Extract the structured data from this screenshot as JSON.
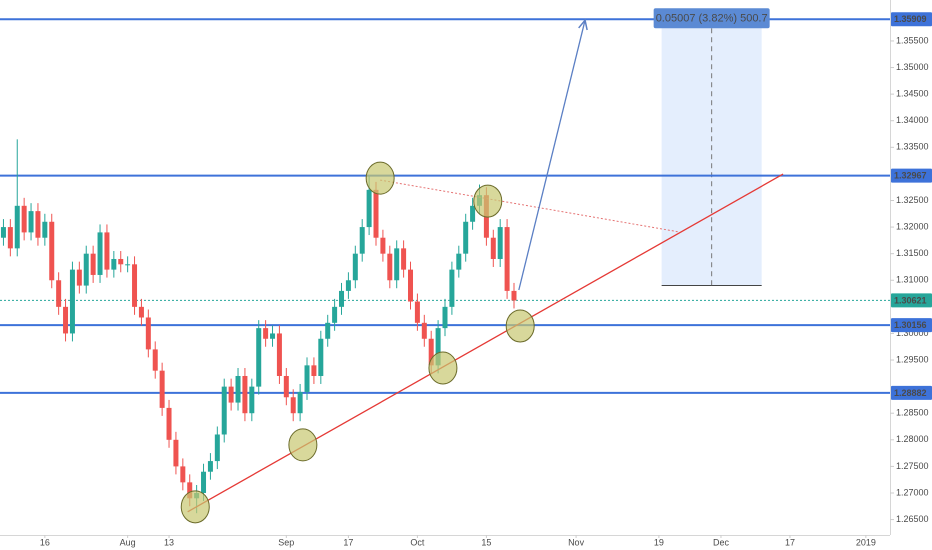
{
  "chart_data": {
    "type": "candlestick",
    "up_color": "#26a69a",
    "down_color": "#ef5350",
    "open": [
      1.318,
      1.32,
      1.316,
      1.324,
      1.319,
      1.323,
      1.318,
      1.321,
      1.31,
      1.305,
      1.3,
      1.312,
      1.309,
      1.315,
      1.311,
      1.319,
      1.312,
      1.314,
      1.313,
      1.313,
      1.305,
      1.303,
      1.297,
      1.293,
      1.286,
      1.28,
      1.275,
      1.272,
      1.269,
      1.27,
      1.274,
      1.276,
      1.281,
      1.29,
      1.287,
      1.292,
      1.285,
      1.29,
      1.301,
      1.299,
      1.3,
      1.292,
      1.288,
      1.285,
      1.289,
      1.294,
      1.292,
      1.299,
      1.302,
      1.305,
      1.308,
      1.31,
      1.315,
      1.32,
      1.327,
      1.318,
      1.315,
      1.31,
      1.316,
      1.312,
      1.306,
      1.302,
      1.299,
      1.294,
      1.301,
      1.305,
      1.312,
      1.315,
      1.321,
      1.324,
      1.326,
      1.318,
      1.314,
      1.32,
      1.308
    ],
    "high": [
      1.3215,
      1.3215,
      1.3365,
      1.3255,
      1.3245,
      1.3245,
      1.3225,
      1.3225,
      1.3115,
      1.3065,
      1.3135,
      1.3135,
      1.3165,
      1.3165,
      1.3205,
      1.3205,
      1.3155,
      1.3155,
      1.3145,
      1.3145,
      1.3065,
      1.3045,
      1.2985,
      1.2945,
      1.2875,
      1.2815,
      1.2765,
      1.2735,
      1.2715,
      1.2755,
      1.2775,
      1.2825,
      1.2915,
      1.2915,
      1.2935,
      1.2935,
      1.2915,
      1.3025,
      1.3025,
      1.3015,
      1.3015,
      1.2935,
      1.2895,
      1.2905,
      1.2955,
      1.2955,
      1.3005,
      1.3035,
      1.3065,
      1.3095,
      1.3115,
      1.3165,
      1.3215,
      1.3297,
      1.3285,
      1.3195,
      1.3165,
      1.3175,
      1.3175,
      1.3135,
      1.3075,
      1.3035,
      1.3005,
      1.3025,
      1.3065,
      1.3135,
      1.3165,
      1.3225,
      1.3255,
      1.328,
      1.3275,
      1.3195,
      1.3215,
      1.3215,
      1.3095
    ],
    "low": [
      1.3165,
      1.3145,
      1.3145,
      1.3175,
      1.3175,
      1.3165,
      1.3165,
      1.3085,
      1.3035,
      1.2985,
      1.2985,
      1.3075,
      1.3075,
      1.3095,
      1.3095,
      1.3105,
      1.3105,
      1.3115,
      1.3115,
      1.3035,
      1.3015,
      1.2955,
      1.2915,
      1.2845,
      1.2785,
      1.2735,
      1.2705,
      1.2675,
      1.2662,
      1.2685,
      1.2725,
      1.2745,
      1.2795,
      1.2855,
      1.2855,
      1.2835,
      1.2835,
      1.2885,
      1.2975,
      1.2975,
      1.2905,
      1.2865,
      1.2835,
      1.2835,
      1.2875,
      1.2905,
      1.2905,
      1.2975,
      1.3005,
      1.3035,
      1.3065,
      1.3085,
      1.3135,
      1.3185,
      1.3165,
      1.3135,
      1.3085,
      1.3085,
      1.3105,
      1.3045,
      1.3005,
      1.2975,
      1.2925,
      1.2925,
      1.2995,
      1.3035,
      1.3105,
      1.3135,
      1.3195,
      1.3225,
      1.3165,
      1.3125,
      1.3125,
      1.3065,
      1.3047
    ],
    "close": [
      1.32,
      1.316,
      1.324,
      1.319,
      1.323,
      1.318,
      1.321,
      1.31,
      1.305,
      1.3,
      1.312,
      1.309,
      1.315,
      1.311,
      1.319,
      1.312,
      1.314,
      1.313,
      1.313,
      1.305,
      1.303,
      1.297,
      1.293,
      1.286,
      1.28,
      1.275,
      1.272,
      1.269,
      1.27,
      1.274,
      1.276,
      1.281,
      1.29,
      1.287,
      1.292,
      1.285,
      1.29,
      1.301,
      1.299,
      1.3,
      1.292,
      1.288,
      1.285,
      1.289,
      1.294,
      1.292,
      1.299,
      1.302,
      1.305,
      1.308,
      1.31,
      1.315,
      1.32,
      1.327,
      1.318,
      1.315,
      1.31,
      1.316,
      1.312,
      1.306,
      1.302,
      1.299,
      1.294,
      1.301,
      1.305,
      1.312,
      1.315,
      1.321,
      1.324,
      1.326,
      1.318,
      1.314,
      1.32,
      1.308,
      1.3062
    ],
    "xlim": [
      -0.5,
      128.5
    ],
    "xticks": [
      {
        "value": 6,
        "label": "16"
      },
      {
        "value": 18,
        "label": "Aug"
      },
      {
        "value": 24,
        "label": "13"
      },
      {
        "value": 41,
        "label": "Sep"
      },
      {
        "value": 50,
        "label": "17"
      },
      {
        "value": 60,
        "label": "Oct"
      },
      {
        "value": 70,
        "label": "15"
      },
      {
        "value": 83,
        "label": "Nov"
      },
      {
        "value": 95,
        "label": "19"
      },
      {
        "value": 104,
        "label": "Dec"
      },
      {
        "value": 114,
        "label": "17"
      },
      {
        "value": 125,
        "label": "2019"
      }
    ],
    "ylim": [
      1.2621,
      1.3627
    ],
    "yticks": [
      {
        "value": 1.355,
        "label": "1.35500"
      },
      {
        "value": 1.35,
        "label": "1.35000"
      },
      {
        "value": 1.345,
        "label": "1.34500"
      },
      {
        "value": 1.34,
        "label": "1.34000"
      },
      {
        "value": 1.335,
        "label": "1.33500"
      },
      {
        "value": 1.325,
        "label": "1.32500"
      },
      {
        "value": 1.32,
        "label": "1.32000"
      },
      {
        "value": 1.315,
        "label": "1.31500"
      },
      {
        "value": 1.31,
        "label": "1.31000"
      },
      {
        "value": 1.3,
        "label": "1.30000"
      },
      {
        "value": 1.295,
        "label": "1.29500"
      },
      {
        "value": 1.285,
        "label": "1.28500"
      },
      {
        "value": 1.28,
        "label": "1.28000"
      },
      {
        "value": 1.275,
        "label": "1.27500"
      },
      {
        "value": 1.27,
        "label": "1.27000"
      },
      {
        "value": 1.265,
        "label": "1.26500"
      }
    ],
    "grid": false,
    "hlines": [
      {
        "value": 1.35909,
        "color": "#3d72d9",
        "style": "solid"
      },
      {
        "value": 1.32967,
        "color": "#3d72d9",
        "style": "solid"
      },
      {
        "value": 1.30621,
        "color": "#26a69a",
        "style": "dotted"
      },
      {
        "value": 1.30156,
        "color": "#3d72d9",
        "style": "solid"
      },
      {
        "value": 1.28882,
        "color": "#3d72d9",
        "style": "solid"
      }
    ],
    "lines": [
      {
        "x": [
          26.7,
          113
        ],
        "y": [
          1.26646,
          1.32997
        ],
        "color": "#e53935",
        "style": "solid",
        "arrow": false
      },
      {
        "x": [
          54.6,
          98
        ],
        "y": [
          1.32884,
          1.31907
        ],
        "color": "#e57373",
        "style": "dotted",
        "arrow": false
      },
      {
        "x": [
          74.7,
          84.3
        ],
        "y": [
          1.30817,
          1.3589
        ],
        "color": "#5b7fc4",
        "style": "solid",
        "arrow": true
      }
    ],
    "markers": {
      "x": [
        27.8,
        43.4,
        54.6,
        63.7,
        70.2,
        74.9
      ],
      "y": [
        1.2674,
        1.27905,
        1.32921,
        1.29351,
        1.32489,
        1.30141
      ],
      "color": "#c8c870"
    },
    "measure": {
      "x": [
        95.4,
        109.9
      ],
      "y": [
        1.30902,
        1.35909
      ],
      "label": "0.05007 (3.82%) 500.7"
    }
  }
}
